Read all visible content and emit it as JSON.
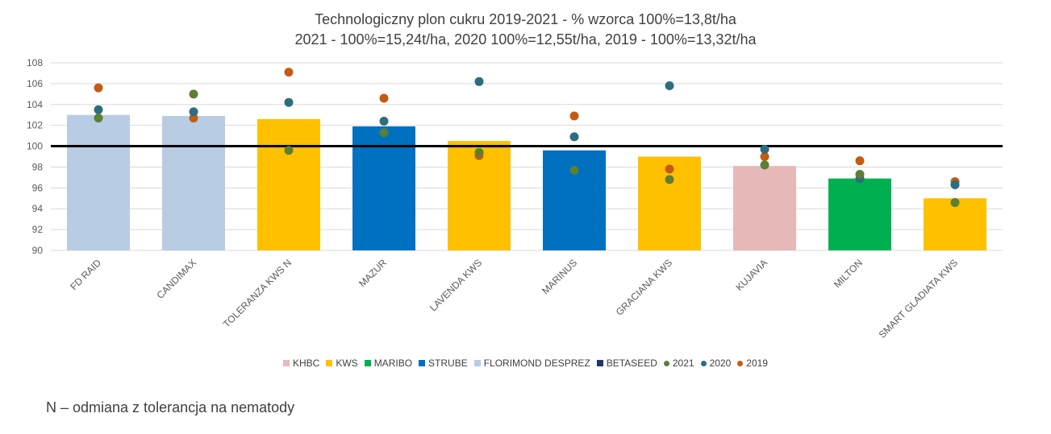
{
  "chart_data": {
    "type": "bar",
    "title_line1": "Technologiczny plon cukru 2019-2021 - % wzorca 100%=13,8t/ha",
    "title_line2": "2021 - 100%=15,24t/ha, 2020 100%=12,55t/ha, 2019 - 100%=13,32t/ha",
    "categories": [
      "FD RAID",
      "CANDIMAX",
      "TOLERANZA KWS N",
      "MAZUR",
      "LAVENDA KWS",
      "MARINUS",
      "GRACIANA KWS",
      "KUJAVIA",
      "MILTON",
      "SMART GLADIATA KWS"
    ],
    "values": [
      103.0,
      102.9,
      102.6,
      101.9,
      100.5,
      99.6,
      99.0,
      98.1,
      96.9,
      95.0
    ],
    "bar_groups": [
      "FLORIMOND DESPREZ",
      "FLORIMOND DESPREZ",
      "KWS",
      "STRUBE",
      "KWS",
      "STRUBE",
      "KWS",
      "KHBC",
      "MARIBO",
      "KWS"
    ],
    "series": [
      {
        "name": "2021",
        "color": "#5b7f35",
        "values": [
          102.7,
          105.0,
          99.6,
          101.3,
          99.4,
          97.7,
          96.8,
          98.2,
          97.3,
          94.6
        ]
      },
      {
        "name": "2020",
        "color": "#2b6e7e",
        "values": [
          103.5,
          103.3,
          104.2,
          102.4,
          106.2,
          100.9,
          105.8,
          99.7,
          96.9,
          96.3
        ]
      },
      {
        "name": "2019",
        "color": "#c55a11",
        "values": [
          105.6,
          102.7,
          107.1,
          104.6,
          99.1,
          102.9,
          97.8,
          99.0,
          98.6,
          96.6
        ]
      }
    ],
    "groups": [
      {
        "name": "KHBC",
        "color": "#e6b9b8"
      },
      {
        "name": "KWS",
        "color": "#ffc000"
      },
      {
        "name": "MARIBO",
        "color": "#00b050"
      },
      {
        "name": "STRUBE",
        "color": "#0070c0"
      },
      {
        "name": "FLORIMOND DESPREZ",
        "color": "#b8cce4"
      },
      {
        "name": "BETASEED",
        "color": "#1f3864"
      }
    ],
    "reference_line": 100,
    "ylim": [
      90,
      108
    ],
    "yticks": [
      90,
      92,
      94,
      96,
      98,
      100,
      102,
      104,
      106,
      108
    ],
    "grid": true,
    "legend_position": "bottom"
  },
  "footnote": "N – odmiana z tolerancja na nematody"
}
